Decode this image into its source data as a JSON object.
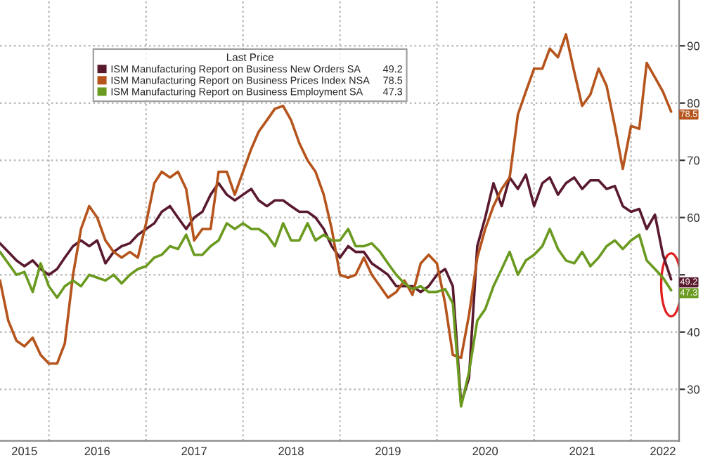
{
  "chart_data": {
    "type": "line",
    "x": [
      "2015-07",
      "2015-08",
      "2015-09",
      "2015-10",
      "2015-11",
      "2015-12",
      "2016-01",
      "2016-02",
      "2016-03",
      "2016-04",
      "2016-05",
      "2016-06",
      "2016-07",
      "2016-08",
      "2016-09",
      "2016-10",
      "2016-11",
      "2016-12",
      "2017-01",
      "2017-02",
      "2017-03",
      "2017-04",
      "2017-05",
      "2017-06",
      "2017-07",
      "2017-08",
      "2017-09",
      "2017-10",
      "2017-11",
      "2017-12",
      "2018-01",
      "2018-02",
      "2018-03",
      "2018-04",
      "2018-05",
      "2018-06",
      "2018-07",
      "2018-08",
      "2018-09",
      "2018-10",
      "2018-11",
      "2018-12",
      "2019-01",
      "2019-02",
      "2019-03",
      "2019-04",
      "2019-05",
      "2019-06",
      "2019-07",
      "2019-08",
      "2019-09",
      "2019-10",
      "2019-11",
      "2019-12",
      "2020-01",
      "2020-02",
      "2020-03",
      "2020-04",
      "2020-05",
      "2020-06",
      "2020-07",
      "2020-08",
      "2020-09",
      "2020-10",
      "2020-11",
      "2020-12",
      "2021-01",
      "2021-02",
      "2021-03",
      "2021-04",
      "2021-05",
      "2021-06",
      "2021-07",
      "2021-08",
      "2021-09",
      "2021-10",
      "2021-11",
      "2021-12",
      "2022-01",
      "2022-02",
      "2022-03",
      "2022-04",
      "2022-05",
      "2022-06"
    ],
    "series": [
      {
        "name": "ISM Manufacturing Report on Business New Orders SA",
        "color": "#5a1a2e",
        "values": [
          55.5,
          54,
          52.5,
          51.5,
          52.5,
          51,
          50,
          51,
          53,
          55,
          56,
          55,
          56,
          52,
          54,
          55,
          55.5,
          57,
          58,
          59,
          61,
          62,
          60,
          58,
          60,
          61,
          64,
          66,
          64,
          63,
          64,
          65,
          63,
          62,
          63,
          63,
          62,
          61,
          61,
          60,
          58,
          55,
          53,
          55,
          54,
          54,
          52,
          51,
          50,
          48,
          48,
          48,
          47,
          48,
          50,
          51,
          48,
          27.5,
          32,
          55,
          60,
          66,
          62,
          67,
          65,
          67.5,
          62,
          66,
          67,
          64,
          66,
          67,
          65,
          66.5,
          66.5,
          65,
          65.5,
          62,
          61,
          61.5,
          58,
          60.5,
          53.5,
          49.2
        ],
        "value_labels": [
          null,
          null,
          null,
          null,
          null,
          null,
          null,
          null,
          null,
          null,
          null,
          null,
          null,
          null,
          null,
          null,
          null,
          null,
          null,
          null,
          null,
          null,
          null,
          null,
          null,
          null,
          null,
          null,
          null,
          null,
          null,
          null,
          null,
          null,
          null,
          null,
          null,
          null,
          null,
          null,
          null,
          null,
          null,
          null,
          null,
          null,
          null,
          null,
          null,
          null,
          null,
          null,
          null,
          null,
          null,
          null,
          null,
          null,
          null,
          null,
          null,
          null,
          null,
          null,
          null,
          null,
          null,
          null,
          null,
          null,
          null,
          null,
          null,
          null,
          null,
          null,
          null,
          null,
          null,
          null,
          null,
          null,
          null,
          "49.2"
        ]
      },
      {
        "name": "ISM Manufacturing Report on Business Prices Index NSA",
        "color": "#b5541c",
        "values": [
          49,
          42,
          38.5,
          37.5,
          39,
          36,
          34.5,
          34.5,
          38,
          50,
          58,
          62,
          60,
          56,
          54,
          53,
          54,
          53,
          59,
          66,
          68,
          67,
          68,
          65,
          56,
          58,
          58,
          68,
          68,
          64,
          68,
          72,
          75,
          77,
          79,
          79.5,
          77,
          73,
          70,
          68,
          64,
          58,
          50,
          49.5,
          50,
          53,
          50,
          48,
          46,
          47,
          49,
          46.5,
          52,
          53.5,
          52,
          45,
          36,
          35.5,
          43,
          53,
          58,
          62,
          65,
          67,
          78,
          82,
          86,
          86,
          89.5,
          88,
          92,
          85.5,
          79.5,
          81.5,
          86,
          83,
          76,
          68.5,
          76,
          75.5,
          87,
          84.5,
          82,
          78.5
        ],
        "value_labels": [
          null,
          null,
          null,
          null,
          null,
          null,
          null,
          null,
          null,
          null,
          null,
          null,
          null,
          null,
          null,
          null,
          null,
          null,
          null,
          null,
          null,
          null,
          null,
          null,
          null,
          null,
          null,
          null,
          null,
          null,
          null,
          null,
          null,
          null,
          null,
          null,
          null,
          null,
          null,
          null,
          null,
          null,
          null,
          null,
          null,
          null,
          null,
          null,
          null,
          null,
          null,
          null,
          null,
          null,
          null,
          null,
          null,
          null,
          null,
          null,
          null,
          null,
          null,
          null,
          null,
          null,
          null,
          null,
          null,
          null,
          null,
          null,
          null,
          null,
          null,
          null,
          null,
          null,
          null,
          null,
          null,
          null,
          null,
          "78.5"
        ]
      },
      {
        "name": "ISM Manufacturing Report on Business Employment SA",
        "color": "#6a9a1f",
        "values": [
          54,
          52,
          50,
          50.5,
          47,
          52,
          48,
          46,
          48,
          49,
          48,
          50,
          49.5,
          49,
          50,
          48.5,
          50,
          51,
          51.5,
          53,
          53.5,
          55,
          54.5,
          57,
          53.5,
          53.5,
          55,
          56,
          59,
          58,
          59,
          58,
          58,
          57,
          55,
          59,
          56,
          56,
          59,
          56,
          57,
          56,
          56,
          58,
          55,
          55,
          55.5,
          54,
          52,
          50,
          48.5,
          47.5,
          48,
          47,
          47,
          47.5,
          45,
          27,
          33,
          42,
          44,
          48,
          51,
          54,
          50,
          52.5,
          53.5,
          55,
          58,
          54.5,
          52.5,
          52,
          54,
          51.5,
          53,
          55,
          56,
          54.5,
          56,
          57,
          52.5,
          51,
          49.5,
          47.3
        ],
        "value_labels": [
          null,
          null,
          null,
          null,
          null,
          null,
          null,
          null,
          null,
          null,
          null,
          null,
          null,
          null,
          null,
          null,
          null,
          null,
          null,
          null,
          null,
          null,
          null,
          null,
          null,
          null,
          null,
          null,
          null,
          null,
          null,
          null,
          null,
          null,
          null,
          null,
          null,
          null,
          null,
          null,
          null,
          null,
          null,
          null,
          null,
          null,
          null,
          null,
          null,
          null,
          null,
          null,
          null,
          null,
          null,
          null,
          null,
          null,
          null,
          null,
          null,
          null,
          null,
          null,
          null,
          null,
          null,
          null,
          null,
          null,
          null,
          null,
          null,
          null,
          null,
          null,
          null,
          null,
          null,
          null,
          null,
          null,
          null,
          "47.3"
        ]
      }
    ],
    "legend_title": "Last Price",
    "legend": "top left",
    "grid": true,
    "xlim": [
      "2015-07",
      "2022-07"
    ],
    "xticks": [
      {
        "value": "2016-01",
        "label": null
      },
      {
        "value": "2017-01",
        "label": null
      },
      {
        "value": "2018-01",
        "label": null
      },
      {
        "value": "2019-01",
        "label": null
      },
      {
        "value": "2020-01",
        "label": null
      },
      {
        "value": "2021-01",
        "label": null
      },
      {
        "value": "2022-01",
        "label": null
      },
      {
        "value": "2015-10",
        "label": "2015"
      },
      {
        "value": "2016-07",
        "label": "2016"
      },
      {
        "value": "2017-07",
        "label": "2017"
      },
      {
        "value": "2018-07",
        "label": "2018"
      },
      {
        "value": "2019-07",
        "label": "2019"
      },
      {
        "value": "2020-07",
        "label": "2020"
      },
      {
        "value": "2021-07",
        "label": "2021"
      },
      {
        "value": "2022-05",
        "label": "2022"
      }
    ],
    "ylim": [
      21,
      98
    ],
    "yticks": [
      30,
      40,
      {
        "value": 50,
        "label": null
      },
      60,
      70,
      80,
      90
    ]
  }
}
